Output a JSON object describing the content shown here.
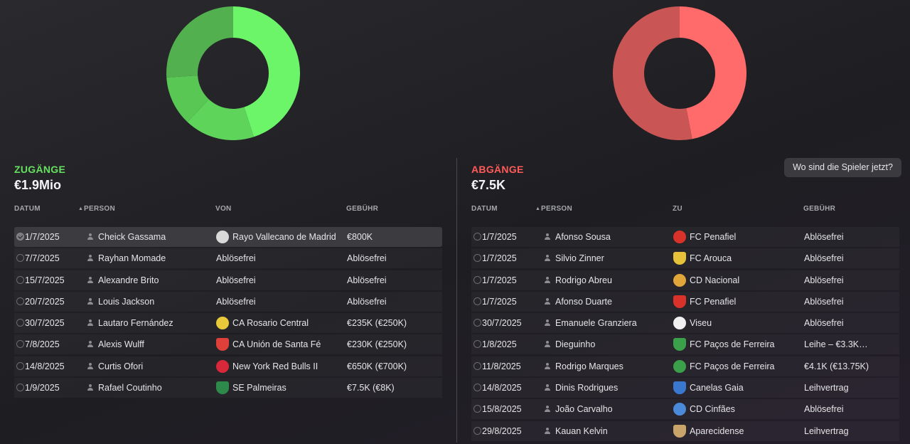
{
  "incoming": {
    "title": "ZUGÄNGE",
    "total": "€1.9Mio",
    "color": "#66e060",
    "chart_segments": [
      {
        "share": 0.45,
        "color": "#6df56a"
      },
      {
        "share": 0.17,
        "color": "#5ed45a"
      },
      {
        "share": 0.12,
        "color": "#58c754"
      },
      {
        "share": 0.26,
        "color": "#52b04e"
      }
    ],
    "columns": {
      "date": "DATUM",
      "person": "PERSON",
      "club": "VON",
      "fee": "GEBÜHR"
    },
    "rows": [
      {
        "date": "1/7/2025",
        "person": "Cheick Gassama",
        "club": "Rayo Vallecano de Madrid",
        "club_icon": "rayo-vallecano-crest-icon",
        "crest_color": "#d9d9d9",
        "fee": "€800K",
        "checked": true
      },
      {
        "date": "7/7/2025",
        "person": "Rayhan Momade",
        "club": "Ablösefrei",
        "club_icon": "",
        "crest_color": "",
        "fee": "Ablösefrei",
        "checked": false
      },
      {
        "date": "15/7/2025",
        "person": "Alexandre Brito",
        "club": "Ablösefrei",
        "club_icon": "",
        "crest_color": "",
        "fee": "Ablösefrei",
        "checked": false
      },
      {
        "date": "20/7/2025",
        "person": "Louis Jackson",
        "club": "Ablösefrei",
        "club_icon": "",
        "crest_color": "",
        "fee": "Ablösefrei",
        "checked": false
      },
      {
        "date": "30/7/2025",
        "person": "Lautaro Fernández",
        "club": "CA Rosario Central",
        "club_icon": "rosario-central-crest-icon",
        "crest_color": "#e8c93a",
        "fee": "€235K (€250K)",
        "checked": false
      },
      {
        "date": "7/8/2025",
        "person": "Alexis Wulff",
        "club": "CA Unión de Santa Fé",
        "club_icon": "union-santa-fe-crest-icon",
        "crest_color": "#e0403a",
        "fee": "€230K (€250K)",
        "checked": false
      },
      {
        "date": "14/8/2025",
        "person": "Curtis Ofori",
        "club": "New York Red Bulls II",
        "club_icon": "ny-red-bulls-crest-icon",
        "crest_color": "#d8283a",
        "fee": "€650K (€700K)",
        "checked": false
      },
      {
        "date": "1/9/2025",
        "person": "Rafael Coutinho",
        "club": "SE Palmeiras",
        "club_icon": "palmeiras-crest-icon",
        "crest_color": "#2e8a4a",
        "fee": "€7.5K (€8K)",
        "checked": false
      }
    ]
  },
  "outgoing": {
    "title": "ABGÄNGE",
    "total": "€7.5K",
    "color": "#ff5a5a",
    "chart_segments": [
      {
        "share": 0.47,
        "color": "#ff6b6b"
      },
      {
        "share": 0.53,
        "color": "#c95555"
      }
    ],
    "columns": {
      "date": "DATUM",
      "person": "PERSON",
      "club": "ZU",
      "fee": "GEBÜHR"
    },
    "rows": [
      {
        "date": "1/7/2025",
        "person": "Afonso Sousa",
        "club": "FC Penafiel",
        "club_icon": "fc-penafiel-crest-icon",
        "crest_color": "#d8322a",
        "fee": "Ablösefrei",
        "checked": false
      },
      {
        "date": "1/7/2025",
        "person": "Silvio Zinner",
        "club": "FC Arouca",
        "club_icon": "fc-arouca-crest-icon",
        "crest_color": "#e6c23a",
        "fee": "Ablösefrei",
        "checked": false
      },
      {
        "date": "1/7/2025",
        "person": "Rodrigo Abreu",
        "club": "CD Nacional",
        "club_icon": "cd-nacional-crest-icon",
        "crest_color": "#e0a63a",
        "fee": "Ablösefrei",
        "checked": false
      },
      {
        "date": "1/7/2025",
        "person": "Afonso Duarte",
        "club": "FC Penafiel",
        "club_icon": "fc-penafiel-crest-icon",
        "crest_color": "#d8322a",
        "fee": "Ablösefrei",
        "checked": false
      },
      {
        "date": "30/7/2025",
        "person": "Emanuele Granziera",
        "club": "Viseu",
        "club_icon": "viseu-crest-icon",
        "crest_color": "#f0f0f0",
        "fee": "Ablösefrei",
        "checked": false
      },
      {
        "date": "1/8/2025",
        "person": "Dieguinho",
        "club": "FC Paços de Ferreira",
        "club_icon": "pacos-ferreira-crest-icon",
        "crest_color": "#3aa04a",
        "fee": "Leihe – €3.3K…",
        "checked": false
      },
      {
        "date": "11/8/2025",
        "person": "Rodrigo Marques",
        "club": "FC Paços de Ferreira",
        "club_icon": "pacos-ferreira-crest-icon",
        "crest_color": "#3aa04a",
        "fee": "€4.1K (€13.75K)",
        "checked": false
      },
      {
        "date": "14/8/2025",
        "person": "Dinis Rodrigues",
        "club": "Canelas Gaia",
        "club_icon": "canelas-gaia-crest-icon",
        "crest_color": "#3a78d0",
        "fee": "Leihvertrag",
        "checked": false
      },
      {
        "date": "15/8/2025",
        "person": "João Carvalho",
        "club": "CD Cinfães",
        "club_icon": "cd-cinfaes-crest-icon",
        "crest_color": "#4a8ad8",
        "fee": "Ablösefrei",
        "checked": false
      },
      {
        "date": "29/8/2025",
        "person": "Kauan Kelvin",
        "club": "Aparecidense",
        "club_icon": "aparecidense-crest-icon",
        "crest_color": "#c8a46a",
        "fee": "Leihvertrag",
        "checked": false
      }
    ]
  },
  "actions": {
    "where_players_now": "Wo sind die Spieler jetzt?"
  }
}
